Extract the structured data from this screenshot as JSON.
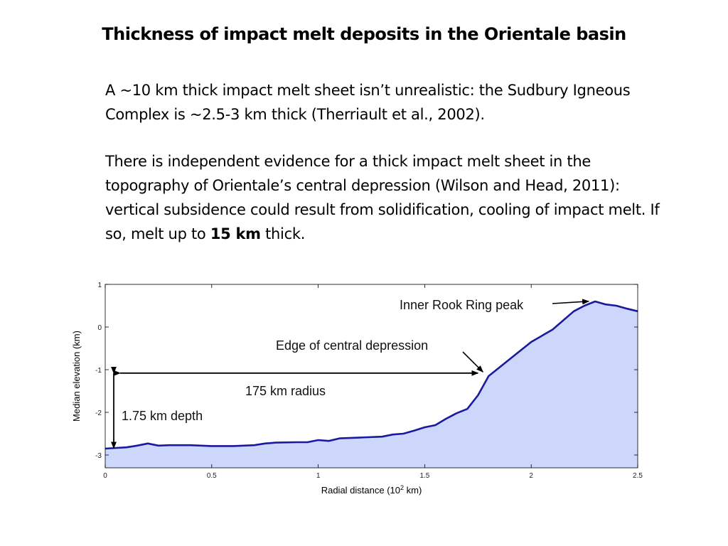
{
  "slide": {
    "title": "Thickness of impact melt deposits in the Orientale basin",
    "paragraph1": "A ~10 km thick impact melt sheet isn’t unrealistic: the Sudbury Igneous Complex is ~2.5-3 km thick (Therriault et al., 2002).",
    "paragraph2_pre": "There is independent evidence for a thick impact melt sheet in the topography of Orientale’s central depression (Wilson and Head, 2011): vertical subsidence could result from solidification, cooling of impact melt. If so, melt up to ",
    "paragraph2_bold": "15 km",
    "paragraph2_post": " thick."
  },
  "chart_data": {
    "type": "area",
    "xlabel_main": "Radial distance (10",
    "xlabel_sup": "2",
    "xlabel_end": " km)",
    "ylabel": "Median elevation (km)",
    "xlim": [
      0,
      2.5
    ],
    "ylim": [
      -3.3,
      1
    ],
    "xticks": [
      "0",
      "0.5",
      "1",
      "1.5",
      "2",
      "2.5"
    ],
    "yticks": [
      "1",
      "0",
      "-1",
      "-2",
      "-3"
    ],
    "colors": {
      "line": "#1a1aa0",
      "fill": "#ccd7fb",
      "axis": "#000000"
    },
    "series": [
      {
        "name": "median elevation",
        "x": [
          0,
          0.1,
          0.15,
          0.2,
          0.25,
          0.3,
          0.4,
          0.5,
          0.6,
          0.7,
          0.75,
          0.8,
          0.9,
          0.95,
          1.0,
          1.05,
          1.1,
          1.2,
          1.3,
          1.35,
          1.4,
          1.45,
          1.5,
          1.55,
          1.6,
          1.65,
          1.7,
          1.75,
          1.8,
          1.9,
          2.0,
          2.1,
          2.2,
          2.25,
          2.3,
          2.35,
          2.4,
          2.45,
          2.5
        ],
        "y": [
          -2.85,
          -2.82,
          -2.78,
          -2.73,
          -2.78,
          -2.77,
          -2.77,
          -2.79,
          -2.79,
          -2.77,
          -2.73,
          -2.71,
          -2.7,
          -2.7,
          -2.65,
          -2.67,
          -2.61,
          -2.59,
          -2.57,
          -2.52,
          -2.5,
          -2.43,
          -2.35,
          -2.3,
          -2.15,
          -2.02,
          -1.92,
          -1.6,
          -1.15,
          -0.75,
          -0.35,
          -0.06,
          0.37,
          0.5,
          0.6,
          0.53,
          0.5,
          0.43,
          0.37
        ]
      }
    ],
    "annotations": [
      {
        "text": "Inner Rook Ring peak",
        "x": 2.29,
        "y": 0.62
      },
      {
        "text": "Edge of central depression",
        "x": 1.78,
        "y": -1.12
      },
      {
        "text": "175 km radius",
        "from_x": 0.07,
        "to_x": 1.75,
        "y": -1.08
      },
      {
        "text": "1.75 km depth",
        "x": 0.04,
        "from_y": -1.08,
        "to_y": -2.84
      }
    ]
  }
}
